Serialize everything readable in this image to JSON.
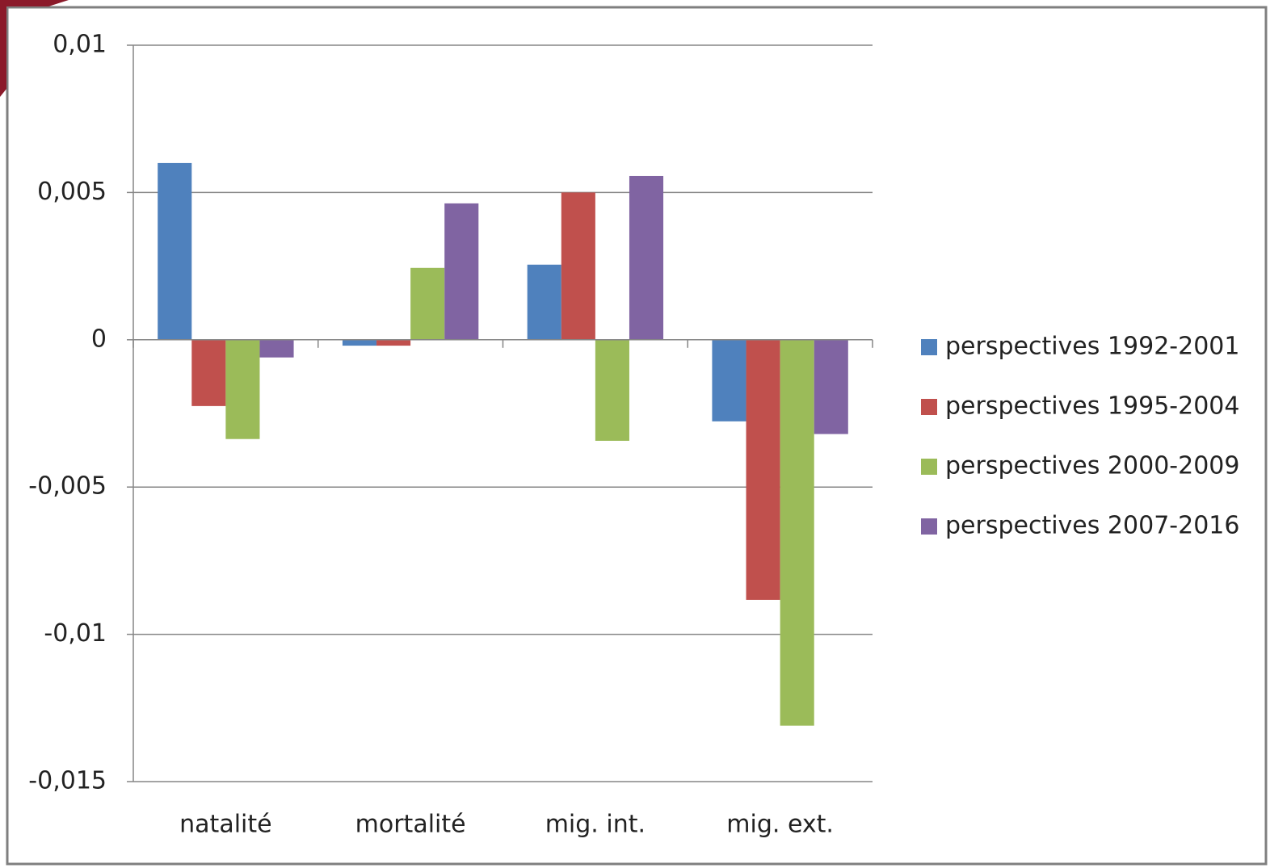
{
  "chart_data": {
    "type": "bar",
    "categories": [
      "natalité",
      "mortalité",
      "mig. int.",
      "mig. ext."
    ],
    "series": [
      {
        "name": "perspectives 1992-2001",
        "color": "#4f81bd",
        "values": [
          0.006,
          -0.0002,
          0.00255,
          -0.00277
        ]
      },
      {
        "name": "perspectives 1995-2004",
        "color": "#c0504d",
        "values": [
          -0.00225,
          -0.0002,
          0.005,
          -0.00883
        ]
      },
      {
        "name": "perspectives 2000-2009",
        "color": "#9bbb59",
        "values": [
          -0.00337,
          0.00244,
          -0.00343,
          -0.0131
        ]
      },
      {
        "name": "perspectives 2007-2016",
        "color": "#8064a2",
        "values": [
          -0.0006,
          0.00463,
          0.00556,
          -0.0032
        ]
      }
    ],
    "ylim": [
      -0.015,
      0.01
    ],
    "yticks": [
      {
        "value": -0.015,
        "label": "-0,015"
      },
      {
        "value": -0.01,
        "label": "-0,01"
      },
      {
        "value": -0.005,
        "label": "-0,005"
      },
      0,
      {
        "value": 0.005,
        "label": "0,005"
      },
      {
        "value": 0.01,
        "label": "0,01"
      }
    ],
    "grid": true,
    "legend": "right"
  }
}
